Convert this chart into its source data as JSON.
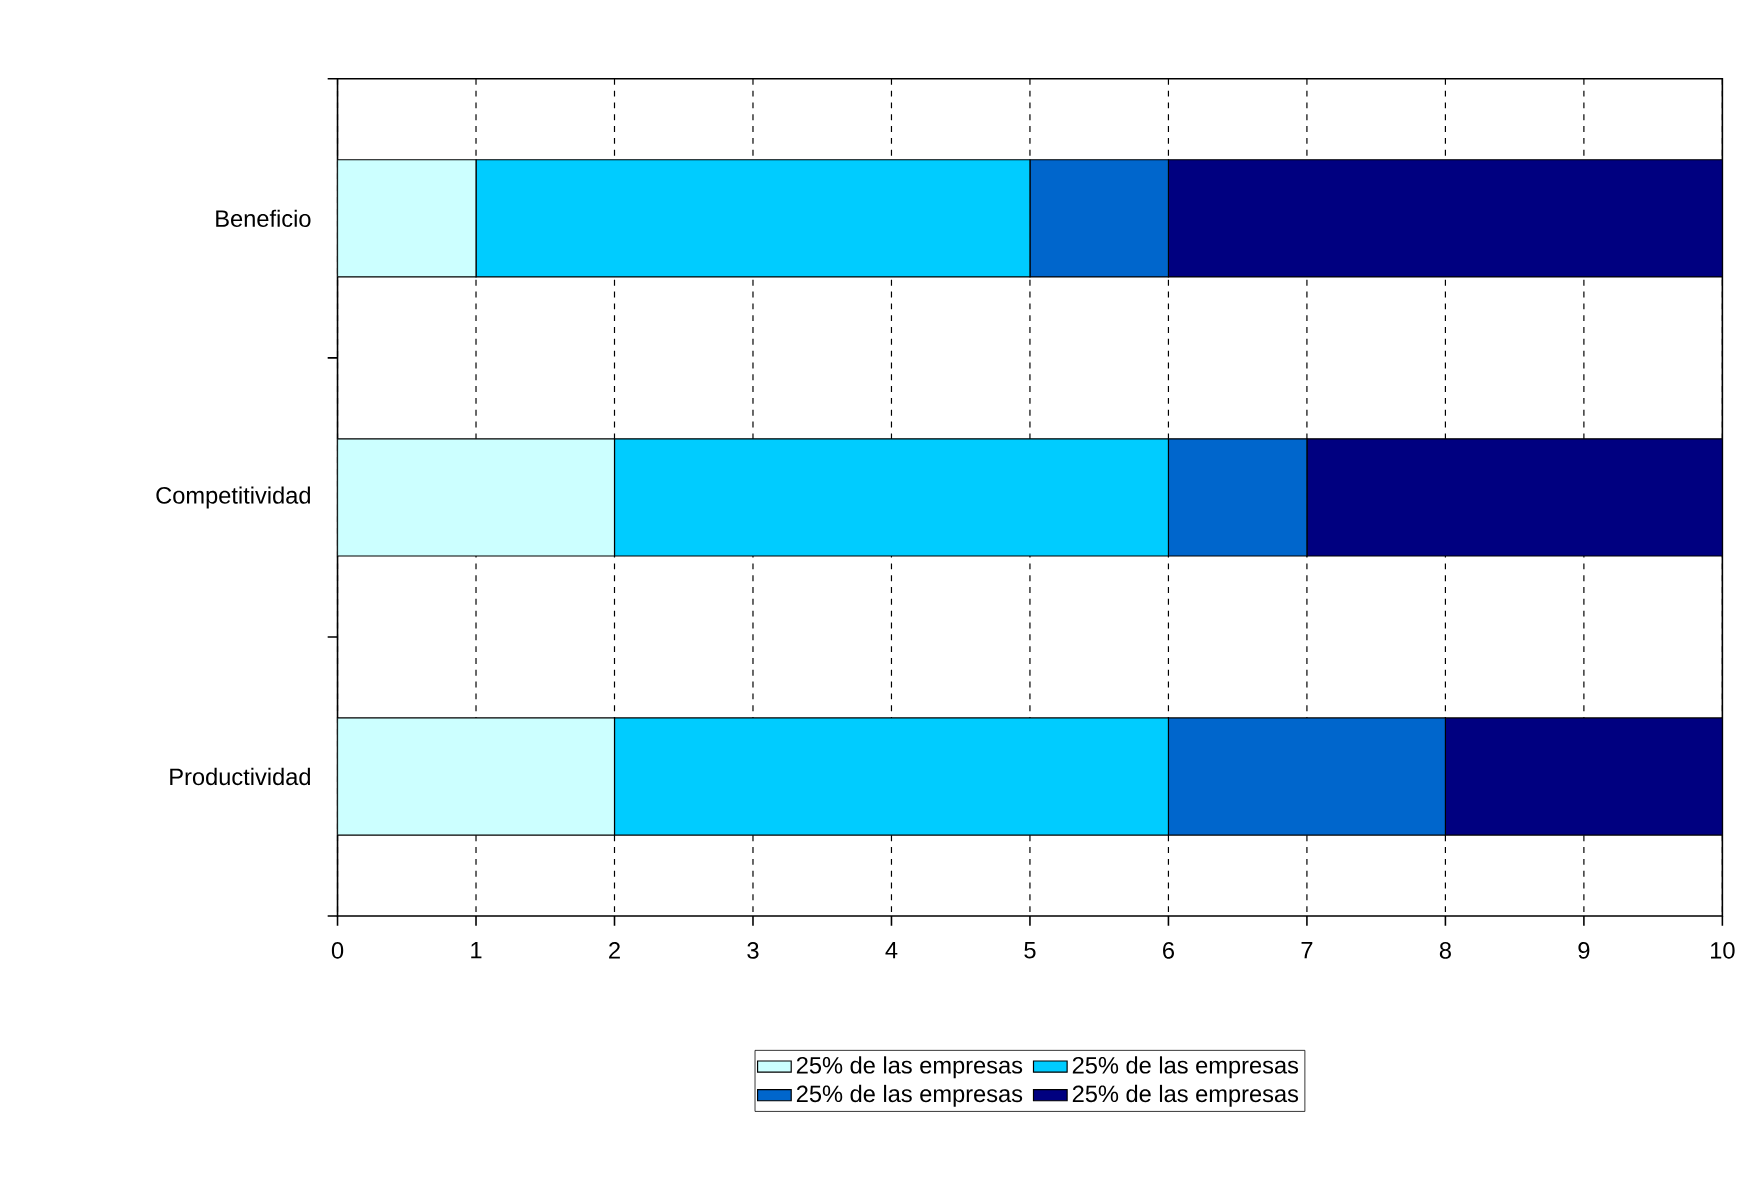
{
  "chart_data": {
    "type": "bar",
    "orientation": "horizontal",
    "stacked": true,
    "categories": [
      "Beneficio",
      "Competitividad",
      "Productividad"
    ],
    "series": [
      {
        "name": "25% de las empresas",
        "color": "#ccffff",
        "values": [
          1,
          2,
          2
        ]
      },
      {
        "name": "25% de las empresas",
        "color": "#00ccff",
        "values": [
          4,
          4,
          4
        ]
      },
      {
        "name": "25% de las empresas",
        "color": "#0066cc",
        "values": [
          1,
          1,
          2
        ]
      },
      {
        "name": "25% de las empresas",
        "color": "#000080",
        "values": [
          4,
          3,
          2
        ]
      }
    ],
    "xlim": [
      0,
      10
    ],
    "xticks": [
      0,
      1,
      2,
      3,
      4,
      5,
      6,
      7,
      8,
      9,
      10
    ],
    "grid": "x",
    "legend": "bottom"
  }
}
